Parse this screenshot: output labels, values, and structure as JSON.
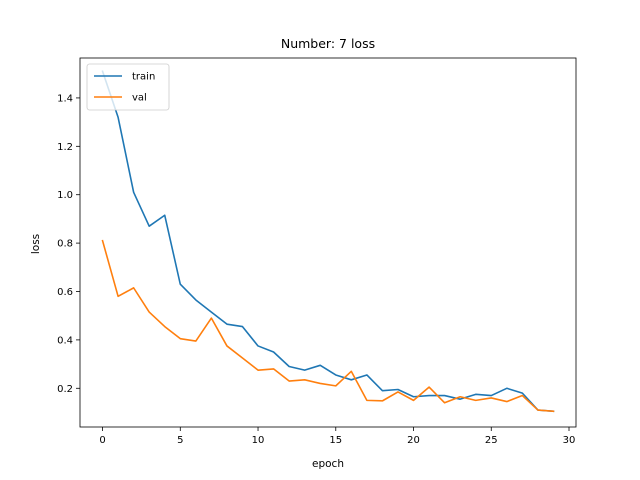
{
  "chart_data": {
    "type": "line",
    "title": "Number: 7 loss",
    "xlabel": "epoch",
    "ylabel": "loss",
    "xlim": [
      -1.45,
      30.45
    ],
    "ylim": [
      0.04,
      1.565
    ],
    "xticks": [
      0,
      5,
      10,
      15,
      20,
      25,
      30
    ],
    "yticks": [
      0.2,
      0.4,
      0.6,
      0.8,
      1.0,
      1.2,
      1.4
    ],
    "grid": false,
    "legend_position": "top-left",
    "x": [
      0,
      1,
      2,
      3,
      4,
      5,
      6,
      7,
      8,
      9,
      10,
      11,
      12,
      13,
      14,
      15,
      16,
      17,
      18,
      19,
      20,
      21,
      22,
      23,
      24,
      25,
      26,
      27,
      28,
      29
    ],
    "series": [
      {
        "name": "train",
        "color": "#1f77b4",
        "values": [
          1.51,
          1.32,
          1.01,
          0.87,
          0.915,
          0.63,
          0.565,
          0.515,
          0.465,
          0.455,
          0.375,
          0.35,
          0.29,
          0.275,
          0.295,
          0.255,
          0.235,
          0.255,
          0.19,
          0.195,
          0.165,
          0.17,
          0.17,
          0.155,
          0.175,
          0.17,
          0.2,
          0.18,
          0.11,
          0.105
        ]
      },
      {
        "name": "val",
        "color": "#ff7f0e",
        "values": [
          0.81,
          0.58,
          0.615,
          0.515,
          0.455,
          0.405,
          0.395,
          0.49,
          0.375,
          0.325,
          0.275,
          0.28,
          0.23,
          0.235,
          0.22,
          0.21,
          0.27,
          0.15,
          0.148,
          0.185,
          0.15,
          0.205,
          0.14,
          0.165,
          0.15,
          0.16,
          0.145,
          0.17,
          0.11,
          0.105
        ]
      }
    ]
  }
}
